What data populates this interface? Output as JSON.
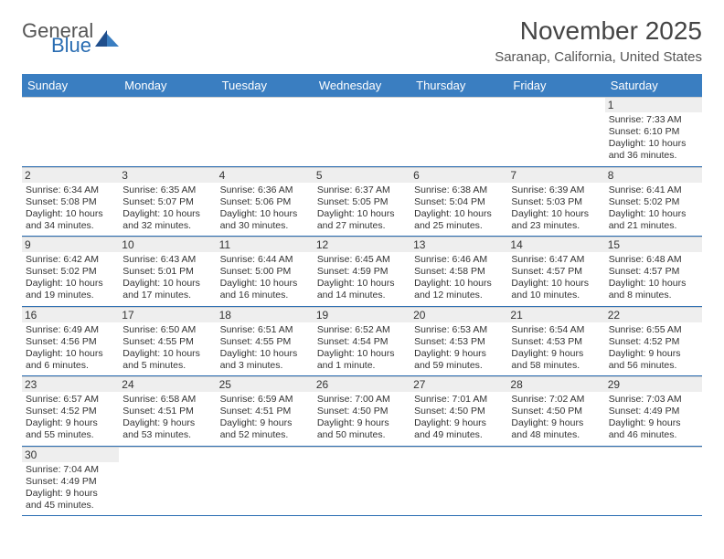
{
  "brand": {
    "part1": "General",
    "part2": "Blue"
  },
  "title": "November 2025",
  "subtitle": "Saranap, California, United States",
  "colors": {
    "header_bg": "#3a7ec1",
    "header_text": "#ffffff",
    "row_divider": "#2a6db2",
    "daynum_bg": "#eeeeee",
    "cell_border": "#d0d0d0",
    "title_color": "#444444",
    "subtitle_color": "#555555",
    "logo_general": "#555555",
    "logo_blue": "#2a6db2",
    "sail_dark": "#1f4e8c",
    "sail_light": "#3a7ec1"
  },
  "layout": {
    "cols": 7,
    "title_fontsize": 28,
    "subtitle_fontsize": 15,
    "header_fontsize": 13,
    "daynum_fontsize": 12,
    "body_fontsize": 10.5
  },
  "weekdays": [
    "Sunday",
    "Monday",
    "Tuesday",
    "Wednesday",
    "Thursday",
    "Friday",
    "Saturday"
  ],
  "weeks": [
    [
      null,
      null,
      null,
      null,
      null,
      null,
      {
        "n": "1",
        "sr": "7:33 AM",
        "ss": "6:10 PM",
        "dl": "10 hours and 36 minutes."
      }
    ],
    [
      {
        "n": "2",
        "sr": "6:34 AM",
        "ss": "5:08 PM",
        "dl": "10 hours and 34 minutes."
      },
      {
        "n": "3",
        "sr": "6:35 AM",
        "ss": "5:07 PM",
        "dl": "10 hours and 32 minutes."
      },
      {
        "n": "4",
        "sr": "6:36 AM",
        "ss": "5:06 PM",
        "dl": "10 hours and 30 minutes."
      },
      {
        "n": "5",
        "sr": "6:37 AM",
        "ss": "5:05 PM",
        "dl": "10 hours and 27 minutes."
      },
      {
        "n": "6",
        "sr": "6:38 AM",
        "ss": "5:04 PM",
        "dl": "10 hours and 25 minutes."
      },
      {
        "n": "7",
        "sr": "6:39 AM",
        "ss": "5:03 PM",
        "dl": "10 hours and 23 minutes."
      },
      {
        "n": "8",
        "sr": "6:41 AM",
        "ss": "5:02 PM",
        "dl": "10 hours and 21 minutes."
      }
    ],
    [
      {
        "n": "9",
        "sr": "6:42 AM",
        "ss": "5:02 PM",
        "dl": "10 hours and 19 minutes."
      },
      {
        "n": "10",
        "sr": "6:43 AM",
        "ss": "5:01 PM",
        "dl": "10 hours and 17 minutes."
      },
      {
        "n": "11",
        "sr": "6:44 AM",
        "ss": "5:00 PM",
        "dl": "10 hours and 16 minutes."
      },
      {
        "n": "12",
        "sr": "6:45 AM",
        "ss": "4:59 PM",
        "dl": "10 hours and 14 minutes."
      },
      {
        "n": "13",
        "sr": "6:46 AM",
        "ss": "4:58 PM",
        "dl": "10 hours and 12 minutes."
      },
      {
        "n": "14",
        "sr": "6:47 AM",
        "ss": "4:57 PM",
        "dl": "10 hours and 10 minutes."
      },
      {
        "n": "15",
        "sr": "6:48 AM",
        "ss": "4:57 PM",
        "dl": "10 hours and 8 minutes."
      }
    ],
    [
      {
        "n": "16",
        "sr": "6:49 AM",
        "ss": "4:56 PM",
        "dl": "10 hours and 6 minutes."
      },
      {
        "n": "17",
        "sr": "6:50 AM",
        "ss": "4:55 PM",
        "dl": "10 hours and 5 minutes."
      },
      {
        "n": "18",
        "sr": "6:51 AM",
        "ss": "4:55 PM",
        "dl": "10 hours and 3 minutes."
      },
      {
        "n": "19",
        "sr": "6:52 AM",
        "ss": "4:54 PM",
        "dl": "10 hours and 1 minute."
      },
      {
        "n": "20",
        "sr": "6:53 AM",
        "ss": "4:53 PM",
        "dl": "9 hours and 59 minutes."
      },
      {
        "n": "21",
        "sr": "6:54 AM",
        "ss": "4:53 PM",
        "dl": "9 hours and 58 minutes."
      },
      {
        "n": "22",
        "sr": "6:55 AM",
        "ss": "4:52 PM",
        "dl": "9 hours and 56 minutes."
      }
    ],
    [
      {
        "n": "23",
        "sr": "6:57 AM",
        "ss": "4:52 PM",
        "dl": "9 hours and 55 minutes."
      },
      {
        "n": "24",
        "sr": "6:58 AM",
        "ss": "4:51 PM",
        "dl": "9 hours and 53 minutes."
      },
      {
        "n": "25",
        "sr": "6:59 AM",
        "ss": "4:51 PM",
        "dl": "9 hours and 52 minutes."
      },
      {
        "n": "26",
        "sr": "7:00 AM",
        "ss": "4:50 PM",
        "dl": "9 hours and 50 minutes."
      },
      {
        "n": "27",
        "sr": "7:01 AM",
        "ss": "4:50 PM",
        "dl": "9 hours and 49 minutes."
      },
      {
        "n": "28",
        "sr": "7:02 AM",
        "ss": "4:50 PM",
        "dl": "9 hours and 48 minutes."
      },
      {
        "n": "29",
        "sr": "7:03 AM",
        "ss": "4:49 PM",
        "dl": "9 hours and 46 minutes."
      }
    ],
    [
      {
        "n": "30",
        "sr": "7:04 AM",
        "ss": "4:49 PM",
        "dl": "9 hours and 45 minutes."
      },
      null,
      null,
      null,
      null,
      null,
      null
    ]
  ],
  "labels": {
    "sunrise": "Sunrise:",
    "sunset": "Sunset:",
    "daylight": "Daylight:"
  }
}
